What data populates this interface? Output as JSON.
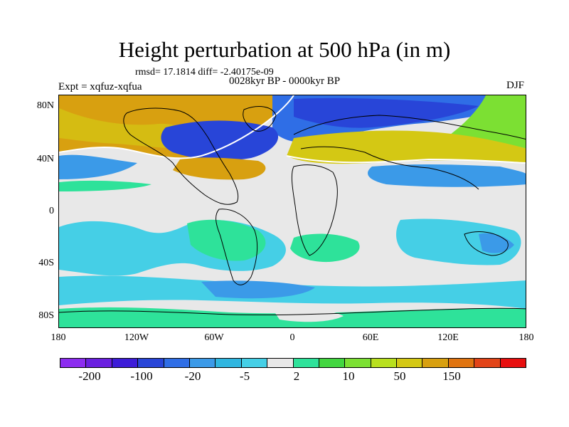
{
  "title": "Height perturbation at 500 hPa (in m)",
  "stats": "rmsd= 17.1814 diff= -2.40175e-09",
  "period": "0028kyr BP - 0000kyr BP",
  "expt": "Expt = xqfuz-xqfua",
  "season": "DJF",
  "lat_ticks": [
    "80N",
    "40N",
    "0",
    "40S",
    "80S"
  ],
  "lon_ticks": [
    "180",
    "120W",
    "60W",
    "0",
    "60E",
    "120E",
    "180"
  ],
  "colorbar": {
    "colors": [
      "#8c2cf0",
      "#6a1fe0",
      "#3d1cd8",
      "#2845d8",
      "#2f6ee6",
      "#3b9ae8",
      "#2fb6e0",
      "#45cfe6",
      "#e8e8e8",
      "#2ee29a",
      "#42d640",
      "#7ce033",
      "#b8e01e",
      "#d4c814",
      "#d8a010",
      "#e07410",
      "#e24418",
      "#e80f0f"
    ],
    "labels": [
      "-200",
      "-100",
      "-20",
      "-5",
      "2",
      "10",
      "50",
      "150"
    ]
  },
  "colors": {
    "neutral": "#e8e8e8",
    "coast": "#000000",
    "contour": "#ffffff"
  }
}
